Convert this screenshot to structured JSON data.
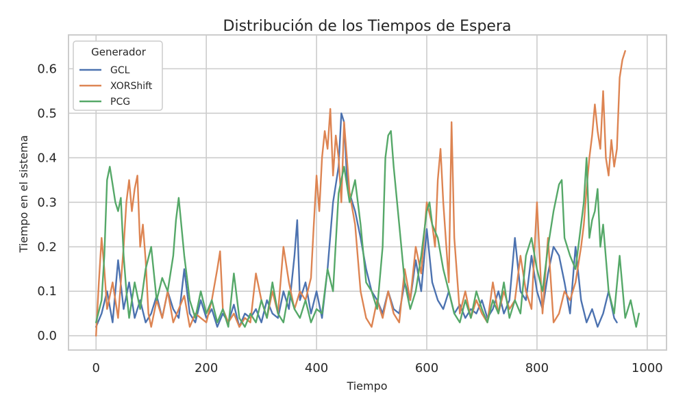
{
  "chart_data": {
    "type": "line",
    "title": "Distribución de los Tiempos de Espera",
    "xlabel": "Tiempo",
    "ylabel": "Tiempo en el sistema",
    "xlim": [
      -50,
      1035
    ],
    "ylim": [
      -0.032,
      0.676
    ],
    "xticks": [
      0,
      200,
      400,
      600,
      800,
      1000
    ],
    "yticks": [
      0.0,
      0.1,
      0.2,
      0.3,
      0.4,
      0.5,
      0.6
    ],
    "xtick_labels": [
      "0",
      "200",
      "400",
      "600",
      "800",
      "1000"
    ],
    "ytick_labels": [
      "0.0",
      "0.1",
      "0.2",
      "0.3",
      "0.4",
      "0.5",
      "0.6"
    ],
    "grid": true,
    "legend": {
      "title": "Generador",
      "placement": "top-left"
    },
    "series": [
      {
        "name": "GCL",
        "color": "#4c72b0",
        "x": [
          0,
          10,
          20,
          30,
          40,
          50,
          60,
          70,
          80,
          90,
          100,
          110,
          120,
          130,
          140,
          150,
          160,
          170,
          180,
          190,
          200,
          210,
          220,
          230,
          240,
          250,
          260,
          270,
          280,
          290,
          300,
          310,
          320,
          330,
          340,
          350,
          360,
          365,
          370,
          380,
          390,
          400,
          410,
          420,
          430,
          440,
          445,
          450,
          455,
          460,
          470,
          480,
          490,
          500,
          510,
          520,
          530,
          540,
          550,
          560,
          570,
          580,
          590,
          600,
          610,
          620,
          630,
          640,
          650,
          660,
          670,
          680,
          690,
          700,
          710,
          720,
          730,
          740,
          750,
          760,
          770,
          780,
          790,
          800,
          810,
          820,
          830,
          840,
          850,
          860,
          870,
          880,
          890,
          900,
          910,
          920,
          930,
          940,
          945
        ],
        "values": [
          0.02,
          0.05,
          0.1,
          0.03,
          0.17,
          0.06,
          0.12,
          0.04,
          0.08,
          0.03,
          0.05,
          0.09,
          0.04,
          0.1,
          0.06,
          0.04,
          0.15,
          0.05,
          0.03,
          0.08,
          0.04,
          0.06,
          0.02,
          0.05,
          0.03,
          0.07,
          0.02,
          0.05,
          0.04,
          0.06,
          0.03,
          0.08,
          0.05,
          0.04,
          0.1,
          0.06,
          0.18,
          0.26,
          0.08,
          0.12,
          0.05,
          0.1,
          0.04,
          0.15,
          0.3,
          0.38,
          0.5,
          0.48,
          0.36,
          0.32,
          0.28,
          0.22,
          0.15,
          0.1,
          0.08,
          0.05,
          0.1,
          0.06,
          0.05,
          0.12,
          0.08,
          0.17,
          0.1,
          0.24,
          0.12,
          0.08,
          0.06,
          0.1,
          0.05,
          0.07,
          0.04,
          0.06,
          0.05,
          0.08,
          0.04,
          0.06,
          0.1,
          0.05,
          0.08,
          0.22,
          0.1,
          0.08,
          0.18,
          0.1,
          0.06,
          0.14,
          0.2,
          0.18,
          0.12,
          0.05,
          0.2,
          0.08,
          0.03,
          0.06,
          0.02,
          0.05,
          0.1,
          0.04,
          0.03
        ]
      },
      {
        "name": "XORShift",
        "color": "#dd8452",
        "x": [
          0,
          5,
          10,
          15,
          20,
          30,
          40,
          50,
          55,
          60,
          65,
          70,
          75,
          80,
          85,
          90,
          95,
          100,
          110,
          120,
          130,
          140,
          150,
          160,
          170,
          180,
          190,
          200,
          210,
          220,
          225,
          230,
          240,
          250,
          260,
          270,
          280,
          290,
          300,
          310,
          320,
          330,
          340,
          350,
          360,
          370,
          380,
          390,
          395,
          400,
          405,
          410,
          415,
          420,
          425,
          430,
          435,
          440,
          445,
          450,
          460,
          470,
          480,
          490,
          500,
          510,
          520,
          530,
          540,
          550,
          560,
          570,
          580,
          590,
          600,
          610,
          615,
          620,
          625,
          630,
          640,
          645,
          650,
          660,
          670,
          680,
          690,
          700,
          710,
          720,
          730,
          740,
          750,
          760,
          770,
          780,
          790,
          800,
          810,
          820,
          830,
          840,
          850,
          860,
          870,
          880,
          885,
          890,
          895,
          900,
          905,
          910,
          915,
          920,
          925,
          930,
          935,
          940,
          945,
          950,
          955,
          960
        ],
        "values": [
          0.0,
          0.12,
          0.22,
          0.15,
          0.06,
          0.12,
          0.04,
          0.2,
          0.3,
          0.35,
          0.28,
          0.33,
          0.36,
          0.2,
          0.25,
          0.17,
          0.05,
          0.02,
          0.08,
          0.04,
          0.1,
          0.03,
          0.06,
          0.09,
          0.02,
          0.05,
          0.04,
          0.03,
          0.08,
          0.15,
          0.19,
          0.06,
          0.03,
          0.05,
          0.02,
          0.04,
          0.03,
          0.14,
          0.08,
          0.04,
          0.1,
          0.05,
          0.2,
          0.12,
          0.06,
          0.1,
          0.08,
          0.13,
          0.25,
          0.36,
          0.28,
          0.4,
          0.46,
          0.42,
          0.51,
          0.36,
          0.45,
          0.4,
          0.3,
          0.48,
          0.32,
          0.25,
          0.1,
          0.04,
          0.02,
          0.08,
          0.04,
          0.1,
          0.05,
          0.03,
          0.15,
          0.08,
          0.2,
          0.14,
          0.3,
          0.25,
          0.2,
          0.35,
          0.42,
          0.3,
          0.12,
          0.48,
          0.22,
          0.05,
          0.1,
          0.04,
          0.08,
          0.05,
          0.03,
          0.12,
          0.05,
          0.1,
          0.06,
          0.08,
          0.18,
          0.1,
          0.06,
          0.3,
          0.05,
          0.22,
          0.03,
          0.05,
          0.1,
          0.08,
          0.12,
          0.2,
          0.25,
          0.33,
          0.4,
          0.45,
          0.52,
          0.46,
          0.42,
          0.55,
          0.4,
          0.36,
          0.44,
          0.38,
          0.42,
          0.58,
          0.62,
          0.64
        ]
      },
      {
        "name": "PCG",
        "color": "#55a868",
        "x": [
          0,
          10,
          15,
          20,
          25,
          30,
          35,
          40,
          45,
          50,
          55,
          60,
          70,
          80,
          90,
          100,
          110,
          120,
          130,
          140,
          145,
          150,
          160,
          170,
          180,
          190,
          200,
          210,
          220,
          230,
          240,
          250,
          260,
          270,
          280,
          290,
          300,
          310,
          320,
          330,
          340,
          350,
          360,
          370,
          380,
          390,
          400,
          410,
          420,
          430,
          440,
          450,
          460,
          470,
          480,
          490,
          500,
          510,
          520,
          525,
          530,
          535,
          540,
          550,
          560,
          570,
          580,
          590,
          600,
          605,
          610,
          620,
          630,
          640,
          650,
          660,
          670,
          680,
          690,
          700,
          710,
          720,
          730,
          740,
          750,
          760,
          770,
          780,
          790,
          800,
          810,
          820,
          830,
          840,
          845,
          850,
          860,
          870,
          880,
          885,
          890,
          895,
          900,
          905,
          910,
          915,
          920,
          930,
          940,
          950,
          960,
          970,
          980,
          985
        ],
        "values": [
          0.03,
          0.08,
          0.18,
          0.35,
          0.38,
          0.34,
          0.3,
          0.28,
          0.31,
          0.18,
          0.1,
          0.04,
          0.12,
          0.06,
          0.15,
          0.2,
          0.08,
          0.13,
          0.1,
          0.18,
          0.26,
          0.31,
          0.18,
          0.08,
          0.04,
          0.1,
          0.05,
          0.08,
          0.03,
          0.06,
          0.02,
          0.14,
          0.04,
          0.02,
          0.05,
          0.03,
          0.08,
          0.04,
          0.12,
          0.05,
          0.03,
          0.1,
          0.06,
          0.04,
          0.08,
          0.03,
          0.06,
          0.05,
          0.15,
          0.1,
          0.32,
          0.38,
          0.3,
          0.35,
          0.25,
          0.12,
          0.1,
          0.06,
          0.2,
          0.4,
          0.45,
          0.46,
          0.38,
          0.25,
          0.12,
          0.06,
          0.1,
          0.18,
          0.28,
          0.3,
          0.25,
          0.22,
          0.15,
          0.1,
          0.05,
          0.03,
          0.08,
          0.04,
          0.1,
          0.06,
          0.03,
          0.08,
          0.05,
          0.12,
          0.04,
          0.08,
          0.05,
          0.18,
          0.22,
          0.15,
          0.1,
          0.2,
          0.28,
          0.34,
          0.35,
          0.22,
          0.18,
          0.15,
          0.25,
          0.3,
          0.4,
          0.22,
          0.26,
          0.28,
          0.33,
          0.2,
          0.25,
          0.1,
          0.05,
          0.18,
          0.04,
          0.08,
          0.02,
          0.05
        ]
      }
    ]
  }
}
